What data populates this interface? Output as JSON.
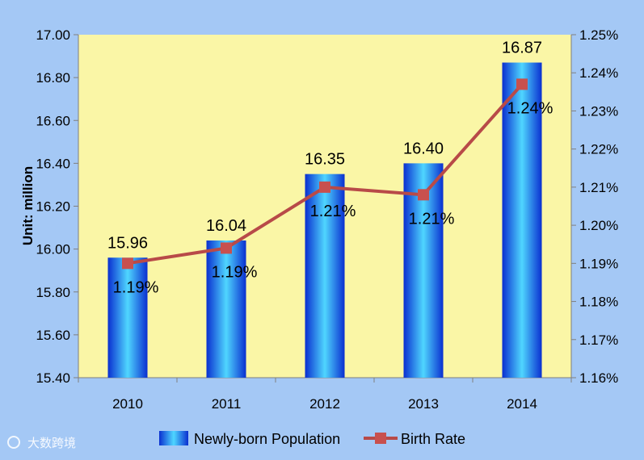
{
  "chart_data": {
    "type": "bar",
    "categories": [
      "2010",
      "2011",
      "2012",
      "2013",
      "2014"
    ],
    "series": [
      {
        "name": "Newly-born Population",
        "type": "bar",
        "axis": "left",
        "values": [
          15.96,
          16.04,
          16.35,
          16.4,
          16.87
        ],
        "labels": [
          "15.96",
          "16.04",
          "16.35",
          "16.40",
          "16.87"
        ]
      },
      {
        "name": "Birth Rate",
        "type": "line",
        "axis": "right",
        "values": [
          1.19,
          1.194,
          1.21,
          1.208,
          1.237
        ],
        "labels": [
          "1.19%",
          "1.19%",
          "1.21%",
          "1.21%",
          "1.24%"
        ]
      }
    ],
    "ylabel": "Unit: million",
    "ylim": [
      15.4,
      17.0
    ],
    "yticks": [
      "15.40",
      "15.60",
      "15.80",
      "16.00",
      "16.20",
      "16.40",
      "16.60",
      "16.80",
      "17.00"
    ],
    "y2lim": [
      1.16,
      1.25
    ],
    "y2ticks": [
      "1.16%",
      "1.17%",
      "1.18%",
      "1.19%",
      "1.20%",
      "1.21%",
      "1.22%",
      "1.23%",
      "1.24%",
      "1.25%"
    ],
    "grid": false,
    "legend": "bottom",
    "colors": {
      "plot_background": "#faf6a6",
      "page_background": "#a4c8f5",
      "bar_dark": "#0a2fd0",
      "bar_light": "#4fd6ff",
      "line": "#b84a48",
      "marker": "#c8504e"
    }
  },
  "watermark": "大数跨境"
}
